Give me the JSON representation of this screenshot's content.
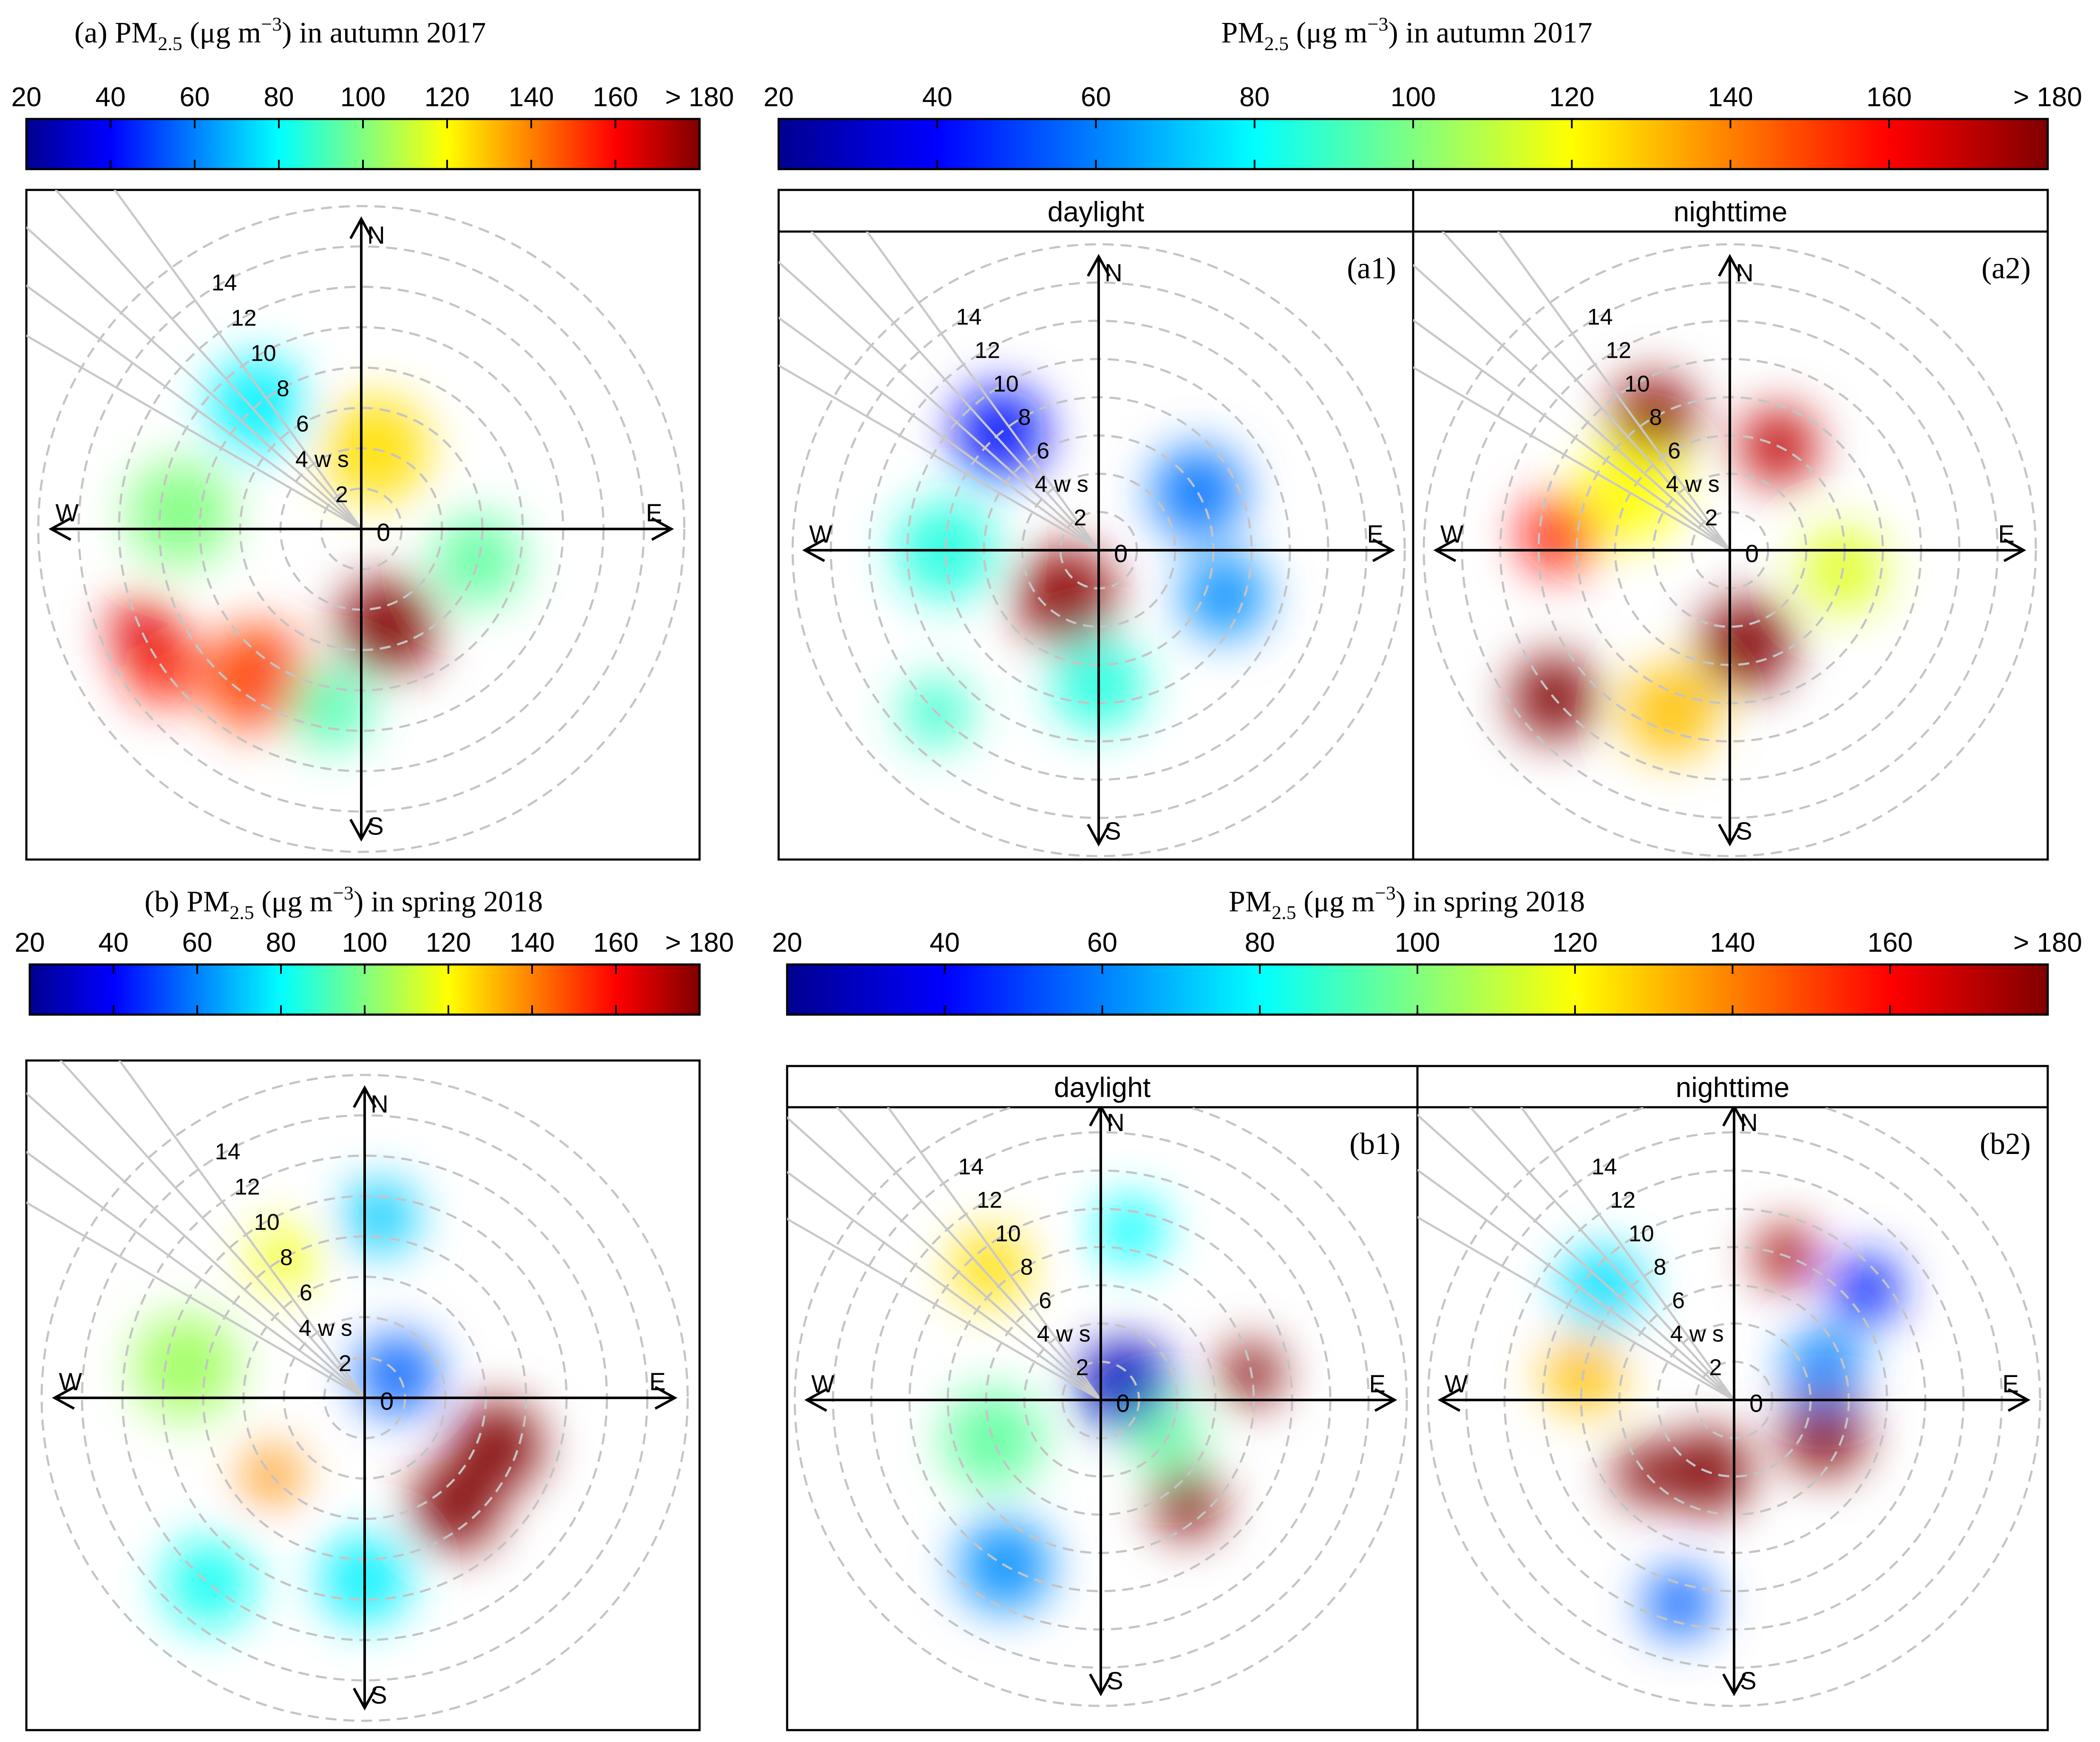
{
  "chart_data": [
    {
      "id": "a",
      "type": "polar",
      "title": "(a) PM2.5 (μg m−3) in autumn 2017",
      "title_parts": {
        "prefix": "(a) PM",
        "sub": "2.5",
        "mid": " (μg m",
        "sup": "−3",
        "suffix": ") in autumn 2017"
      },
      "colorbar": {
        "ticks": [
          "20",
          "40",
          "60",
          "80",
          "100",
          "120",
          "140",
          "160",
          "> 180"
        ],
        "range": [
          20,
          180
        ]
      },
      "panels": [
        {
          "id": "a-main",
          "header": "",
          "label": "",
          "blobs": [
            {
              "dir": 165,
              "r": 5,
              "value": 185,
              "size": 2.4
            },
            {
              "dir": 215,
              "r": 9,
              "value": 150,
              "size": 2.6
            },
            {
              "dir": 235,
              "r": 12,
              "value": 155,
              "size": 1.8
            },
            {
              "dir": 245,
              "r": 12,
              "value": 165,
              "size": 1.6
            },
            {
              "dir": 320,
              "r": 8,
              "value": 78,
              "size": 2.4
            },
            {
              "dir": 10,
              "r": 4,
              "value": 125,
              "size": 2.6
            },
            {
              "dir": 275,
              "r": 9,
              "value": 100,
              "size": 2.6
            },
            {
              "dir": 105,
              "r": 6,
              "value": 95,
              "size": 2.2
            },
            {
              "dir": 190,
              "r": 9,
              "value": 92,
              "size": 2
            }
          ]
        }
      ]
    },
    {
      "id": "a-split",
      "type": "polar",
      "title": "PM2.5 (μg m−3) in autumn 2017",
      "title_parts": {
        "prefix": "PM",
        "sub": "2.5",
        "mid": " (μg m",
        "sup": "−3",
        "suffix": ") in autumn 2017"
      },
      "colorbar": {
        "ticks": [
          "20",
          "40",
          "60",
          "80",
          "100",
          "120",
          "140",
          "160",
          "> 180"
        ],
        "range": [
          20,
          180
        ]
      },
      "panels": [
        {
          "id": "a1",
          "header": "daylight",
          "label": "(a1)",
          "blobs": [
            {
              "dir": 215,
              "r": 3,
              "value": 178,
              "size": 2.6
            },
            {
              "dir": 320,
              "r": 8,
              "value": 42,
              "size": 2.4
            },
            {
              "dir": 60,
              "r": 6,
              "value": 58,
              "size": 2.4
            },
            {
              "dir": 110,
              "r": 7,
              "value": 62,
              "size": 2.2
            },
            {
              "dir": 270,
              "r": 8,
              "value": 85,
              "size": 2.6
            },
            {
              "dir": 180,
              "r": 7,
              "value": 85,
              "size": 2.4
            },
            {
              "dir": 225,
              "r": 12,
              "value": 88,
              "size": 1.8
            }
          ]
        },
        {
          "id": "a2",
          "header": "nighttime",
          "label": "(a2)",
          "blobs": [
            {
              "dir": 170,
              "r": 5,
              "value": 185,
              "size": 2.4
            },
            {
              "dir": 330,
              "r": 8,
              "value": 178,
              "size": 2.2
            },
            {
              "dir": 25,
              "r": 6,
              "value": 170,
              "size": 2
            },
            {
              "dir": 230,
              "r": 12,
              "value": 190,
              "size": 2.2
            },
            {
              "dir": 275,
              "r": 9,
              "value": 158,
              "size": 2
            },
            {
              "dir": 300,
              "r": 6,
              "value": 120,
              "size": 2.6
            },
            {
              "dir": 100,
              "r": 6,
              "value": 115,
              "size": 2.2
            },
            {
              "dir": 200,
              "r": 9,
              "value": 130,
              "size": 2.4
            }
          ]
        }
      ]
    },
    {
      "id": "b",
      "type": "polar",
      "title": "(b) PM2.5 (μg m−3) in spring 2018",
      "title_parts": {
        "prefix": "(b)  PM",
        "sub": "2.5",
        "mid": " (μg m",
        "sup": "−3",
        "suffix": ") in spring 2018"
      },
      "colorbar": {
        "ticks": [
          "20",
          "40",
          "60",
          "80",
          "100",
          "120",
          "140",
          "160",
          "> 180"
        ],
        "range": [
          20,
          180
        ]
      },
      "panels": [
        {
          "id": "b-main",
          "header": "",
          "label": "",
          "blobs": [
            {
              "dir": 55,
              "r": 2,
              "value": 55,
              "size": 2
            },
            {
              "dir": 110,
              "r": 7,
              "value": 190,
              "size": 2.2
            },
            {
              "dir": 140,
              "r": 7,
              "value": 188,
              "size": 2.2
            },
            {
              "dir": 230,
              "r": 6,
              "value": 138,
              "size": 1.4
            },
            {
              "dir": 330,
              "r": 8,
              "value": 118,
              "size": 1.6
            },
            {
              "dir": 280,
              "r": 9,
              "value": 105,
              "size": 2.6
            },
            {
              "dir": 220,
              "r": 12,
              "value": 82,
              "size": 2.2
            },
            {
              "dir": 5,
              "r": 9,
              "value": 72,
              "size": 1.8
            },
            {
              "dir": 180,
              "r": 9,
              "value": 78,
              "size": 2.2
            }
          ]
        }
      ]
    },
    {
      "id": "b-split",
      "type": "polar",
      "title": "PM2.5 (μg m−3) in spring 2018",
      "title_parts": {
        "prefix": "PM",
        "sub": "2.5",
        "mid": " (μg m",
        "sup": "−3",
        "suffix": ") in spring 2018"
      },
      "colorbar": {
        "ticks": [
          "20",
          "40",
          "60",
          "80",
          "100",
          "120",
          "140",
          "160",
          "> 180"
        ],
        "range": [
          20,
          180
        ]
      },
      "panels": [
        {
          "id": "b1",
          "header": "daylight",
          "label": "(b1)",
          "blobs": [
            {
              "dir": 60,
              "r": 1.5,
              "value": 28,
              "size": 2.4
            },
            {
              "dir": 80,
              "r": 8,
              "value": 188,
              "size": 1.6
            },
            {
              "dir": 140,
              "r": 7,
              "value": 180,
              "size": 1.8
            },
            {
              "dir": 320,
              "r": 9,
              "value": 125,
              "size": 2
            },
            {
              "dir": 250,
              "r": 6,
              "value": 95,
              "size": 2.6
            },
            {
              "dir": 210,
              "r": 10,
              "value": 62,
              "size": 2.4
            },
            {
              "dir": 10,
              "r": 9,
              "value": 80,
              "size": 1.8
            },
            {
              "dir": 120,
              "r": 4,
              "value": 95,
              "size": 1.8
            }
          ]
        },
        {
          "id": "b2",
          "header": "nighttime",
          "label": "(b2)",
          "blobs": [
            {
              "dir": 200,
              "r": 4,
              "value": 185,
              "size": 2.2
            },
            {
              "dir": 110,
              "r": 5,
              "value": 188,
              "size": 2.2
            },
            {
              "dir": 230,
              "r": 6,
              "value": 180,
              "size": 1.6
            },
            {
              "dir": 20,
              "r": 8,
              "value": 175,
              "size": 1.6
            },
            {
              "dir": 50,
              "r": 9,
              "value": 45,
              "size": 1.8
            },
            {
              "dir": 280,
              "r": 8,
              "value": 130,
              "size": 2
            },
            {
              "dir": 310,
              "r": 9,
              "value": 75,
              "size": 2.2
            },
            {
              "dir": 70,
              "r": 5,
              "value": 60,
              "size": 2
            },
            {
              "dir": 195,
              "r": 11,
              "value": 55,
              "size": 1.8
            }
          ]
        }
      ]
    }
  ],
  "axes": {
    "north": "N",
    "south": "S",
    "east": "E",
    "west": "W",
    "zero": "0",
    "ws_label": "4 w s"
  },
  "rings": {
    "speeds": [
      2,
      4,
      6,
      8,
      10,
      12,
      14
    ],
    "labels": [
      "2",
      "4 w s",
      "6",
      "8",
      "10",
      "12",
      "14"
    ],
    "max": 16
  },
  "colormap": [
    "#00008f",
    "#0000ff",
    "#0080ff",
    "#00ffff",
    "#80ff80",
    "#ffff00",
    "#ff8000",
    "#ff0000",
    "#800000"
  ]
}
